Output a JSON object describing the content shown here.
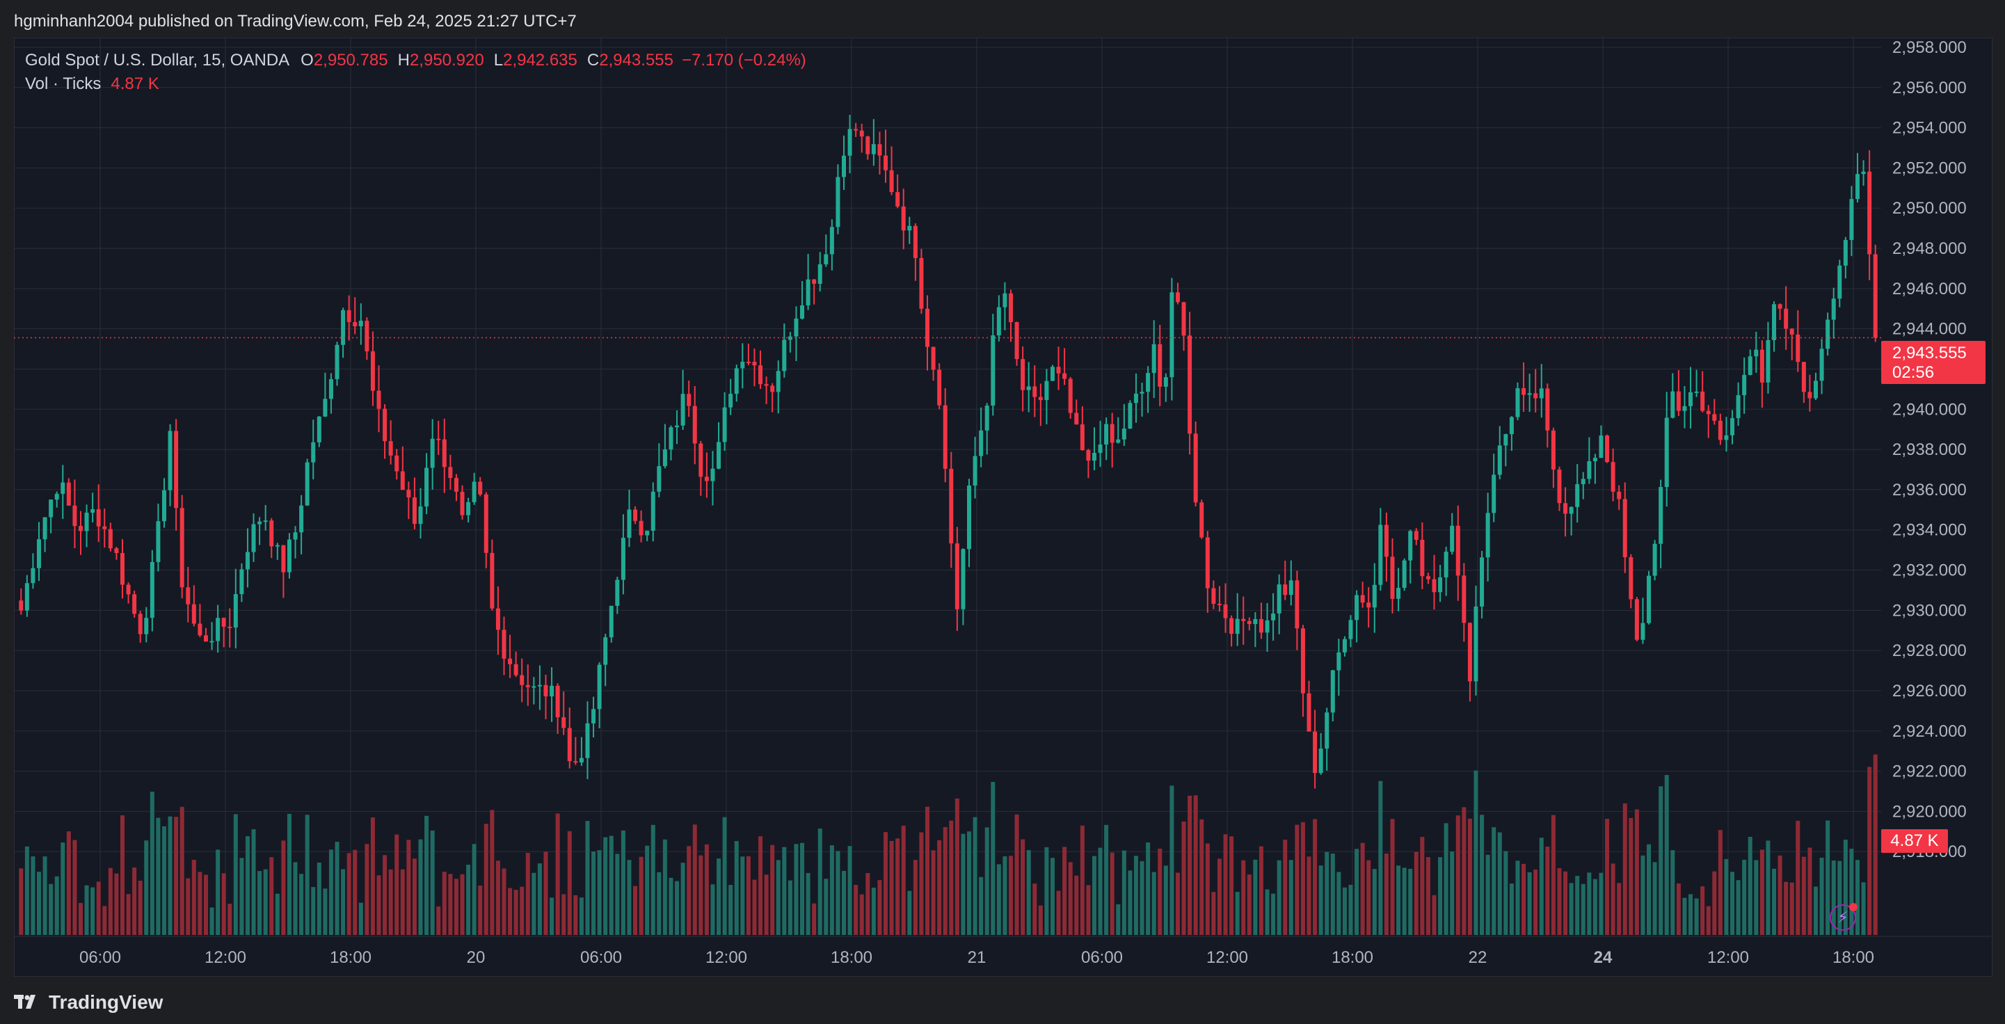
{
  "header": {
    "published": "hgminhanh2004 published on TradingView.com, Feb 24, 2025 21:27 UTC+7"
  },
  "legend": {
    "symbol": "Gold Spot / U.S. Dollar, 15, OANDA",
    "open_label": "O",
    "open": "2,950.785",
    "high_label": "H",
    "high": "2,950.920",
    "low_label": "L",
    "low": "2,942.635",
    "close_label": "C",
    "close": "2,943.555",
    "change": "−7.170 (−0.24%)",
    "vol_label": "Vol · Ticks",
    "vol_value": "4.87 K"
  },
  "price_tag": {
    "price": "2,943.555",
    "countdown": "02:56"
  },
  "volume_tag": "4.87 K",
  "footer": {
    "brand": "TradingView"
  },
  "colors": {
    "up": "#22ab94",
    "down": "#f23645",
    "vol_up": "#1f6b63",
    "vol_down": "#8e2a35",
    "grid": "#2a2e39",
    "background": "#151924"
  },
  "chart_data": {
    "type": "candlestick",
    "ylim": [
      2916,
      2958
    ],
    "y_ticks": [
      "2,958.000",
      "2,956.000",
      "2,954.000",
      "2,952.000",
      "2,950.000",
      "2,948.000",
      "2,946.000",
      "2,944.000",
      "2,942.000",
      "2,940.000",
      "2,938.000",
      "2,936.000",
      "2,934.000",
      "2,932.000",
      "2,930.000",
      "2,928.000",
      "2,926.000",
      "2,924.000",
      "2,922.000",
      "2,920.000",
      "2,918.000"
    ],
    "x_ticks": [
      "06:00",
      "12:00",
      "18:00",
      "20",
      "06:00",
      "12:00",
      "18:00",
      "21",
      "06:00",
      "12:00",
      "18:00",
      "22",
      "24",
      "12:00",
      "18:00"
    ],
    "current_price": 2943.555,
    "close_path": [
      [
        0,
        2930
      ],
      [
        8,
        2934
      ],
      [
        16,
        2936.5
      ],
      [
        24,
        2934
      ],
      [
        32,
        2935
      ],
      [
        40,
        2933
      ],
      [
        48,
        2930
      ],
      [
        52,
        2929
      ],
      [
        58,
        2933
      ],
      [
        64,
        2939
      ],
      [
        68,
        2932
      ],
      [
        76,
        2928.5
      ],
      [
        84,
        2929
      ],
      [
        90,
        2929.5
      ],
      [
        96,
        2933
      ],
      [
        104,
        2935
      ],
      [
        112,
        2932
      ],
      [
        118,
        2934
      ],
      [
        124,
        2938
      ],
      [
        130,
        2940
      ],
      [
        138,
        2945
      ],
      [
        146,
        2944.5
      ],
      [
        152,
        2940
      ],
      [
        158,
        2938
      ],
      [
        164,
        2936
      ],
      [
        170,
        2934
      ],
      [
        176,
        2939
      ],
      [
        184,
        2937
      ],
      [
        190,
        2934
      ],
      [
        196,
        2936.5
      ],
      [
        202,
        2930
      ],
      [
        206,
        2928.5
      ],
      [
        212,
        2927
      ],
      [
        220,
        2926
      ],
      [
        226,
        2926
      ],
      [
        232,
        2925
      ],
      [
        236,
        2922
      ],
      [
        244,
        2924
      ],
      [
        250,
        2928
      ],
      [
        256,
        2932
      ],
      [
        262,
        2935
      ],
      [
        268,
        2934
      ],
      [
        274,
        2937
      ],
      [
        280,
        2939
      ],
      [
        286,
        2941
      ],
      [
        292,
        2937
      ],
      [
        298,
        2937
      ],
      [
        304,
        2941
      ],
      [
        310,
        2943
      ],
      [
        316,
        2942
      ],
      [
        322,
        2941
      ],
      [
        330,
        2944
      ],
      [
        336,
        2946
      ],
      [
        342,
        2947
      ],
      [
        348,
        2949
      ],
      [
        352,
        2953
      ],
      [
        358,
        2954
      ],
      [
        362,
        2953
      ],
      [
        368,
        2952.5
      ],
      [
        374,
        2951
      ],
      [
        380,
        2949
      ],
      [
        384,
        2948
      ],
      [
        388,
        2944
      ],
      [
        394,
        2941
      ],
      [
        398,
        2935
      ],
      [
        402,
        2930
      ],
      [
        406,
        2935
      ],
      [
        410,
        2938
      ],
      [
        414,
        2940
      ],
      [
        418,
        2944
      ],
      [
        422,
        2946
      ],
      [
        426,
        2943
      ],
      [
        430,
        2941
      ],
      [
        436,
        2940
      ],
      [
        442,
        2942
      ],
      [
        448,
        2941
      ],
      [
        452,
        2939
      ],
      [
        458,
        2937
      ],
      [
        464,
        2939
      ],
      [
        470,
        2938
      ],
      [
        476,
        2940
      ],
      [
        482,
        2941
      ],
      [
        486,
        2943
      ],
      [
        490,
        2940
      ],
      [
        494,
        2946
      ],
      [
        498,
        2945
      ],
      [
        502,
        2938
      ],
      [
        506,
        2934
      ],
      [
        510,
        2931
      ],
      [
        516,
        2930
      ],
      [
        522,
        2929
      ],
      [
        528,
        2930
      ],
      [
        534,
        2929
      ],
      [
        540,
        2931
      ],
      [
        546,
        2931
      ],
      [
        552,
        2924
      ],
      [
        556,
        2922
      ],
      [
        562,
        2926
      ],
      [
        568,
        2929
      ],
      [
        574,
        2931
      ],
      [
        580,
        2930
      ],
      [
        584,
        2935
      ],
      [
        590,
        2930
      ],
      [
        596,
        2934
      ],
      [
        602,
        2932
      ],
      [
        608,
        2931
      ],
      [
        614,
        2935
      ],
      [
        618,
        2930
      ],
      [
        622,
        2927
      ],
      [
        626,
        2932
      ],
      [
        632,
        2937
      ],
      [
        638,
        2939
      ],
      [
        642,
        2941
      ],
      [
        646,
        2940
      ],
      [
        652,
        2941
      ],
      [
        656,
        2938
      ],
      [
        662,
        2935
      ],
      [
        668,
        2936
      ],
      [
        674,
        2937
      ],
      [
        678,
        2939
      ],
      [
        682,
        2937
      ],
      [
        686,
        2935
      ],
      [
        690,
        2931
      ],
      [
        694,
        2928
      ],
      [
        698,
        2931
      ],
      [
        704,
        2936
      ],
      [
        708,
        2941
      ],
      [
        712,
        2940
      ],
      [
        718,
        2941
      ],
      [
        724,
        2940
      ],
      [
        730,
        2938
      ],
      [
        736,
        2940
      ],
      [
        740,
        2942
      ],
      [
        744,
        2944
      ],
      [
        748,
        2941
      ],
      [
        752,
        2945
      ],
      [
        758,
        2944
      ],
      [
        764,
        2942
      ],
      [
        768,
        2940
      ],
      [
        774,
        2944
      ],
      [
        780,
        2947
      ],
      [
        784,
        2949
      ],
      [
        788,
        2951
      ],
      [
        790,
        2953
      ],
      [
        792,
        2950
      ],
      [
        796,
        2943.5
      ]
    ],
    "volume_ylim": [
      0,
      100
    ],
    "volume_note": "Vol · Ticks"
  }
}
